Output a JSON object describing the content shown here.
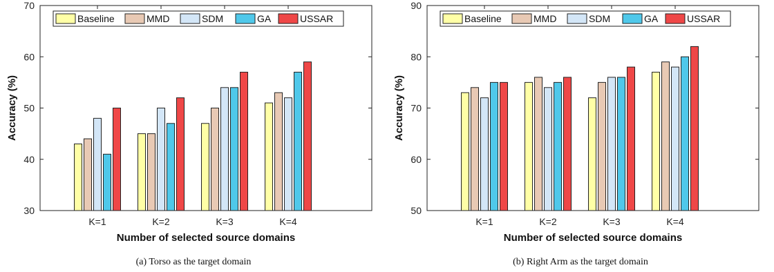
{
  "colors": {
    "Baseline": "#ffffa6",
    "MMD": "#e8c9b4",
    "SDM": "#d3e6f7",
    "GA": "#4fc8ea",
    "USSAR": "#ef4747"
  },
  "chart_data": [
    {
      "type": "bar",
      "caption": "(a)  Torso as the target domain",
      "xlabel": "Number of selected source domains",
      "ylabel": "Accuracy (%)",
      "ylim": [
        30,
        70
      ],
      "yticks": [
        30,
        40,
        50,
        60,
        70
      ],
      "grid": false,
      "legend": "top",
      "categories": [
        "K=1",
        "K=2",
        "K=3",
        "K=4"
      ],
      "series": [
        {
          "name": "Baseline",
          "values": [
            43,
            45,
            47,
            51
          ]
        },
        {
          "name": "MMD",
          "values": [
            44,
            45,
            50,
            53
          ]
        },
        {
          "name": "SDM",
          "values": [
            48,
            50,
            54,
            52
          ]
        },
        {
          "name": "GA",
          "values": [
            41,
            47,
            54,
            57
          ]
        },
        {
          "name": "USSAR",
          "values": [
            50,
            52,
            57,
            59
          ]
        }
      ]
    },
    {
      "type": "bar",
      "caption": "(b)  Right Arm as the target domain",
      "xlabel": "Number of selected source domains",
      "ylabel": "Accuracy (%)",
      "ylim": [
        50,
        90
      ],
      "yticks": [
        50,
        60,
        70,
        80,
        90
      ],
      "grid": false,
      "legend": "top",
      "categories": [
        "K=1",
        "K=2",
        "K=3",
        "K=4"
      ],
      "series": [
        {
          "name": "Baseline",
          "values": [
            73,
            75,
            72,
            77
          ]
        },
        {
          "name": "MMD",
          "values": [
            74,
            76,
            75,
            79
          ]
        },
        {
          "name": "SDM",
          "values": [
            72,
            74,
            76,
            78
          ]
        },
        {
          "name": "GA",
          "values": [
            75,
            75,
            76,
            80
          ]
        },
        {
          "name": "USSAR",
          "values": [
            75,
            76,
            78,
            82
          ]
        }
      ]
    }
  ]
}
